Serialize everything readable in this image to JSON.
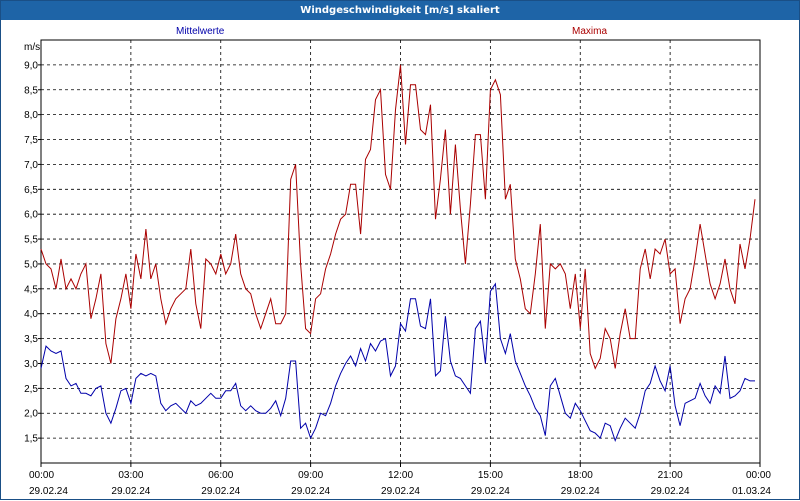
{
  "window": {
    "title": "Windgeschwindigkeit [m/s] skaliert"
  },
  "legend": {
    "series_a": "Mittelwerte",
    "series_b": "Maxima"
  },
  "chart_data": {
    "type": "line",
    "title": "Windgeschwindigkeit [m/s] skaliert",
    "xlabel": "",
    "ylabel": "m/s",
    "ylim": [
      1.0,
      9.5
    ],
    "xlim": [
      "29.02.24 00:00",
      "01.03.24 00:00"
    ],
    "grid": true,
    "legend_position": "top",
    "yticks": [
      "1,5",
      "2,0",
      "2,5",
      "3,0",
      "3,5",
      "4,0",
      "4,5",
      "5,0",
      "5,5",
      "6,0",
      "6,5",
      "7,0",
      "7,5",
      "8,0",
      "8,5",
      "9,0"
    ],
    "xticks": [
      {
        "time": "00:00",
        "date": "29.02.24"
      },
      {
        "time": "03:00",
        "date": "29.02.24"
      },
      {
        "time": "06:00",
        "date": "29.02.24"
      },
      {
        "time": "09:00",
        "date": "29.02.24"
      },
      {
        "time": "12:00",
        "date": "29.02.24"
      },
      {
        "time": "15:00",
        "date": "29.02.24"
      },
      {
        "time": "18:00",
        "date": "29.02.24"
      },
      {
        "time": "21:00",
        "date": "29.02.24"
      },
      {
        "time": "00:00",
        "date": "01.03.24"
      }
    ],
    "series": [
      {
        "name": "Mittelwerte",
        "color": "#0000aa",
        "points": [
          [
            "00:00",
            2.9
          ],
          [
            "00:10",
            3.35
          ],
          [
            "00:20",
            3.25
          ],
          [
            "00:30",
            3.2
          ],
          [
            "00:40",
            3.25
          ],
          [
            "00:50",
            2.7
          ],
          [
            "01:00",
            2.55
          ],
          [
            "01:10",
            2.6
          ],
          [
            "01:20",
            2.4
          ],
          [
            "01:30",
            2.4
          ],
          [
            "01:40",
            2.35
          ],
          [
            "01:50",
            2.5
          ],
          [
            "02:00",
            2.55
          ],
          [
            "02:10",
            2.0
          ],
          [
            "02:20",
            1.8
          ],
          [
            "02:30",
            2.1
          ],
          [
            "02:40",
            2.45
          ],
          [
            "02:50",
            2.5
          ],
          [
            "03:00",
            2.2
          ],
          [
            "03:10",
            2.7
          ],
          [
            "03:20",
            2.8
          ],
          [
            "03:30",
            2.75
          ],
          [
            "03:40",
            2.8
          ],
          [
            "03:50",
            2.75
          ],
          [
            "04:00",
            2.2
          ],
          [
            "04:10",
            2.05
          ],
          [
            "04:20",
            2.15
          ],
          [
            "04:30",
            2.2
          ],
          [
            "04:40",
            2.1
          ],
          [
            "04:50",
            2.0
          ],
          [
            "05:00",
            2.25
          ],
          [
            "05:10",
            2.15
          ],
          [
            "05:20",
            2.2
          ],
          [
            "05:30",
            2.3
          ],
          [
            "05:40",
            2.4
          ],
          [
            "05:50",
            2.3
          ],
          [
            "06:00",
            2.3
          ],
          [
            "06:10",
            2.45
          ],
          [
            "06:20",
            2.45
          ],
          [
            "06:30",
            2.6
          ],
          [
            "06:40",
            2.15
          ],
          [
            "06:50",
            2.05
          ],
          [
            "07:00",
            2.15
          ],
          [
            "07:10",
            2.05
          ],
          [
            "07:20",
            2.0
          ],
          [
            "07:30",
            2.0
          ],
          [
            "07:40",
            2.1
          ],
          [
            "07:50",
            2.25
          ],
          [
            "08:00",
            1.95
          ],
          [
            "08:10",
            2.3
          ],
          [
            "08:20",
            3.05
          ],
          [
            "08:30",
            3.05
          ],
          [
            "08:40",
            1.7
          ],
          [
            "08:50",
            1.8
          ],
          [
            "09:00",
            1.5
          ],
          [
            "09:10",
            1.7
          ],
          [
            "09:20",
            2.0
          ],
          [
            "09:30",
            1.95
          ],
          [
            "09:40",
            2.2
          ],
          [
            "09:50",
            2.55
          ],
          [
            "10:00",
            2.8
          ],
          [
            "10:10",
            3.0
          ],
          [
            "10:20",
            3.15
          ],
          [
            "10:30",
            2.95
          ],
          [
            "10:40",
            3.3
          ],
          [
            "10:50",
            3.05
          ],
          [
            "11:00",
            3.4
          ],
          [
            "11:10",
            3.25
          ],
          [
            "11:20",
            3.45
          ],
          [
            "11:30",
            3.5
          ],
          [
            "11:40",
            2.75
          ],
          [
            "11:50",
            2.95
          ],
          [
            "12:00",
            3.8
          ],
          [
            "12:10",
            3.65
          ],
          [
            "12:20",
            4.3
          ],
          [
            "12:30",
            4.3
          ],
          [
            "12:40",
            3.75
          ],
          [
            "12:50",
            3.7
          ],
          [
            "13:00",
            4.3
          ],
          [
            "13:10",
            2.75
          ],
          [
            "13:20",
            2.85
          ],
          [
            "13:30",
            3.95
          ],
          [
            "13:40",
            3.05
          ],
          [
            "13:50",
            2.75
          ],
          [
            "14:00",
            2.7
          ],
          [
            "14:10",
            2.55
          ],
          [
            "14:20",
            2.4
          ],
          [
            "14:30",
            3.7
          ],
          [
            "14:40",
            3.85
          ],
          [
            "14:50",
            3.0
          ],
          [
            "15:00",
            4.45
          ],
          [
            "15:10",
            4.6
          ],
          [
            "15:20",
            3.5
          ],
          [
            "15:30",
            3.2
          ],
          [
            "15:40",
            3.6
          ],
          [
            "15:50",
            3.05
          ],
          [
            "16:00",
            2.8
          ],
          [
            "16:10",
            2.55
          ],
          [
            "16:20",
            2.35
          ],
          [
            "16:30",
            2.1
          ],
          [
            "16:40",
            1.95
          ],
          [
            "16:50",
            1.55
          ],
          [
            "17:00",
            2.55
          ],
          [
            "17:10",
            2.7
          ],
          [
            "17:20",
            2.35
          ],
          [
            "17:30",
            2.0
          ],
          [
            "17:40",
            1.9
          ],
          [
            "17:50",
            2.2
          ],
          [
            "18:00",
            2.05
          ],
          [
            "18:10",
            1.85
          ],
          [
            "18:20",
            1.65
          ],
          [
            "18:30",
            1.6
          ],
          [
            "18:40",
            1.5
          ],
          [
            "18:50",
            1.8
          ],
          [
            "19:00",
            1.75
          ],
          [
            "19:10",
            1.45
          ],
          [
            "19:20",
            1.7
          ],
          [
            "19:30",
            1.9
          ],
          [
            "19:40",
            1.8
          ],
          [
            "19:50",
            1.7
          ],
          [
            "20:00",
            2.0
          ],
          [
            "20:10",
            2.45
          ],
          [
            "20:20",
            2.6
          ],
          [
            "20:30",
            2.95
          ],
          [
            "20:40",
            2.65
          ],
          [
            "20:50",
            2.45
          ],
          [
            "21:00",
            2.95
          ],
          [
            "21:10",
            2.15
          ],
          [
            "21:20",
            1.75
          ],
          [
            "21:30",
            2.2
          ],
          [
            "21:40",
            2.25
          ],
          [
            "21:50",
            2.3
          ],
          [
            "22:00",
            2.6
          ],
          [
            "22:10",
            2.35
          ],
          [
            "22:20",
            2.2
          ],
          [
            "22:30",
            2.55
          ],
          [
            "22:40",
            2.4
          ],
          [
            "22:50",
            3.15
          ],
          [
            "23:00",
            2.3
          ],
          [
            "23:10",
            2.35
          ],
          [
            "23:20",
            2.45
          ],
          [
            "23:30",
            2.7
          ],
          [
            "23:40",
            2.65
          ],
          [
            "23:50",
            2.65
          ]
        ]
      },
      {
        "name": "Maxima",
        "color": "#aa0000",
        "points": [
          [
            "00:00",
            5.3
          ],
          [
            "00:10",
            5.0
          ],
          [
            "00:20",
            4.9
          ],
          [
            "00:30",
            4.5
          ],
          [
            "00:40",
            5.1
          ],
          [
            "00:50",
            4.5
          ],
          [
            "01:00",
            4.7
          ],
          [
            "01:10",
            4.5
          ],
          [
            "01:20",
            4.8
          ],
          [
            "01:30",
            5.0
          ],
          [
            "01:40",
            3.9
          ],
          [
            "01:50",
            4.3
          ],
          [
            "02:00",
            4.8
          ],
          [
            "02:10",
            3.4
          ],
          [
            "02:20",
            3.0
          ],
          [
            "02:30",
            3.9
          ],
          [
            "02:40",
            4.3
          ],
          [
            "02:50",
            4.8
          ],
          [
            "03:00",
            4.1
          ],
          [
            "03:10",
            5.2
          ],
          [
            "03:20",
            4.7
          ],
          [
            "03:30",
            5.7
          ],
          [
            "03:40",
            4.7
          ],
          [
            "03:50",
            5.0
          ],
          [
            "04:00",
            4.3
          ],
          [
            "04:10",
            3.8
          ],
          [
            "04:20",
            4.1
          ],
          [
            "04:30",
            4.3
          ],
          [
            "04:40",
            4.4
          ],
          [
            "04:50",
            4.5
          ],
          [
            "05:00",
            5.3
          ],
          [
            "05:10",
            4.2
          ],
          [
            "05:20",
            3.7
          ],
          [
            "05:30",
            5.1
          ],
          [
            "05:40",
            5.0
          ],
          [
            "05:50",
            4.8
          ],
          [
            "06:00",
            5.2
          ],
          [
            "06:10",
            4.8
          ],
          [
            "06:20",
            5.0
          ],
          [
            "06:30",
            5.6
          ],
          [
            "06:40",
            4.8
          ],
          [
            "06:50",
            4.5
          ],
          [
            "07:00",
            4.4
          ],
          [
            "07:10",
            4.0
          ],
          [
            "07:20",
            3.7
          ],
          [
            "07:30",
            4.0
          ],
          [
            "07:40",
            4.3
          ],
          [
            "07:50",
            3.8
          ],
          [
            "08:00",
            3.8
          ],
          [
            "08:10",
            4.0
          ],
          [
            "08:20",
            6.7
          ],
          [
            "08:30",
            7.0
          ],
          [
            "08:40",
            5.0
          ],
          [
            "08:50",
            3.7
          ],
          [
            "09:00",
            3.6
          ],
          [
            "09:10",
            4.3
          ],
          [
            "09:20",
            4.4
          ],
          [
            "09:30",
            4.9
          ],
          [
            "09:40",
            5.2
          ],
          [
            "09:50",
            5.6
          ],
          [
            "10:00",
            5.9
          ],
          [
            "10:10",
            6.0
          ],
          [
            "10:20",
            6.6
          ],
          [
            "10:30",
            6.6
          ],
          [
            "10:40",
            5.6
          ],
          [
            "10:50",
            7.1
          ],
          [
            "11:00",
            7.3
          ],
          [
            "11:10",
            8.3
          ],
          [
            "11:20",
            8.5
          ],
          [
            "11:30",
            6.8
          ],
          [
            "11:40",
            6.5
          ],
          [
            "11:50",
            8.1
          ],
          [
            "12:00",
            9.0
          ],
          [
            "12:10",
            7.4
          ],
          [
            "12:20",
            8.6
          ],
          [
            "12:30",
            8.6
          ],
          [
            "12:40",
            7.7
          ],
          [
            "12:50",
            7.6
          ],
          [
            "13:00",
            8.2
          ],
          [
            "13:10",
            5.9
          ],
          [
            "13:20",
            6.7
          ],
          [
            "13:30",
            7.7
          ],
          [
            "13:40",
            6.0
          ],
          [
            "13:50",
            7.4
          ],
          [
            "14:00",
            6.1
          ],
          [
            "14:10",
            5.0
          ],
          [
            "14:20",
            6.2
          ],
          [
            "14:30",
            7.6
          ],
          [
            "14:40",
            7.6
          ],
          [
            "14:50",
            6.3
          ],
          [
            "15:00",
            8.5
          ],
          [
            "15:10",
            8.7
          ],
          [
            "15:20",
            8.4
          ],
          [
            "15:30",
            6.3
          ],
          [
            "15:40",
            6.6
          ],
          [
            "15:50",
            5.1
          ],
          [
            "16:00",
            4.7
          ],
          [
            "16:10",
            4.1
          ],
          [
            "16:20",
            4.0
          ],
          [
            "16:30",
            4.8
          ],
          [
            "16:40",
            5.8
          ],
          [
            "16:50",
            3.7
          ],
          [
            "17:00",
            5.0
          ],
          [
            "17:10",
            4.9
          ],
          [
            "17:20",
            5.0
          ],
          [
            "17:30",
            4.8
          ],
          [
            "17:40",
            4.1
          ],
          [
            "17:50",
            4.8
          ],
          [
            "18:00",
            3.7
          ],
          [
            "18:10",
            4.9
          ],
          [
            "18:20",
            3.2
          ],
          [
            "18:30",
            2.9
          ],
          [
            "18:40",
            3.1
          ],
          [
            "18:50",
            3.7
          ],
          [
            "19:00",
            3.5
          ],
          [
            "19:10",
            2.9
          ],
          [
            "19:20",
            3.6
          ],
          [
            "19:30",
            4.1
          ],
          [
            "19:40",
            3.5
          ],
          [
            "19:50",
            3.5
          ],
          [
            "20:00",
            4.9
          ],
          [
            "20:10",
            5.3
          ],
          [
            "20:20",
            4.7
          ],
          [
            "20:30",
            5.3
          ],
          [
            "20:40",
            5.2
          ],
          [
            "20:50",
            5.5
          ],
          [
            "21:00",
            4.8
          ],
          [
            "21:10",
            4.9
          ],
          [
            "21:20",
            3.8
          ],
          [
            "21:30",
            4.3
          ],
          [
            "21:40",
            4.5
          ],
          [
            "21:50",
            5.1
          ],
          [
            "22:00",
            5.8
          ],
          [
            "22:10",
            5.2
          ],
          [
            "22:20",
            4.6
          ],
          [
            "22:30",
            4.3
          ],
          [
            "22:40",
            4.6
          ],
          [
            "22:50",
            5.1
          ],
          [
            "23:00",
            4.5
          ],
          [
            "23:10",
            4.2
          ],
          [
            "23:20",
            5.4
          ],
          [
            "23:30",
            4.9
          ],
          [
            "23:40",
            5.5
          ],
          [
            "23:50",
            6.3
          ]
        ]
      }
    ]
  }
}
